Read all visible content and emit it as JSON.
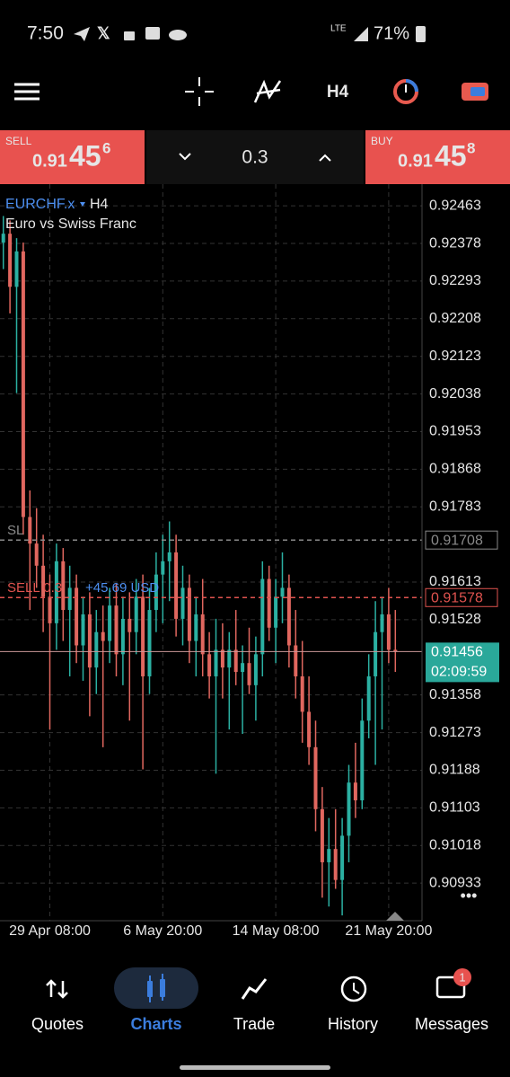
{
  "status_bar": {
    "time": "7:50",
    "network": "LTE",
    "battery": "71%"
  },
  "toolbar": {
    "timeframe": "H4"
  },
  "trade_panel": {
    "sell": {
      "label": "SELL",
      "price_prefix": "0.91",
      "price_main": "45",
      "price_suffix": "6"
    },
    "volume": "0.3",
    "buy": {
      "label": "BUY",
      "price_prefix": "0.91",
      "price_main": "45",
      "price_suffix": "8"
    }
  },
  "chart_data": {
    "type": "candlestick",
    "symbol": "EURCHF.x",
    "timeframe": "H4",
    "description": "Euro vs Swiss Franc",
    "up_color": "#2bb0a2",
    "down_color": "#e0675f",
    "grid": true,
    "categories": [
      null,
      null,
      null,
      null,
      null,
      null,
      null,
      "29 Apr 08:00",
      null,
      null,
      null,
      null,
      null,
      null,
      null,
      null,
      null,
      null,
      null,
      null,
      null,
      null,
      null,
      null,
      "6 May 20:00",
      null,
      null,
      null,
      null,
      null,
      null,
      null,
      null,
      null,
      null,
      null,
      null,
      null,
      null,
      null,
      null,
      "14 May 08:00",
      null,
      null,
      null,
      null,
      null,
      null,
      null,
      null,
      null,
      null,
      null,
      null,
      null,
      null,
      null,
      null,
      "21 May 20:00",
      null
    ],
    "open": [
      0.9238,
      0.924,
      0.9228,
      0.9236,
      0.9176,
      0.917,
      0.9165,
      0.9158,
      0.9152,
      0.9166,
      0.9155,
      0.916,
      0.9147,
      0.9154,
      0.9142,
      0.915,
      0.9148,
      0.9156,
      0.9145,
      0.9153,
      0.915,
      0.9158,
      0.914,
      0.9155,
      0.9163,
      0.9166,
      0.9168,
      0.9153,
      0.916,
      0.9148,
      0.9154,
      0.9145,
      0.914,
      0.9146,
      0.9142,
      0.9146,
      0.9141,
      0.9143,
      0.9138,
      0.9145,
      0.9162,
      0.9151,
      0.9158,
      0.916,
      0.9147,
      0.914,
      0.9132,
      0.9124,
      0.911,
      0.9098,
      0.9101,
      0.9094,
      0.9104,
      0.9116,
      0.9112,
      0.913,
      0.914,
      0.915,
      0.9154,
      0.9146
    ],
    "high": [
      0.9244,
      0.9243,
      0.9239,
      0.9238,
      0.9182,
      0.9178,
      0.9172,
      0.9163,
      0.917,
      0.9169,
      0.9165,
      0.9163,
      0.9158,
      0.9159,
      0.9155,
      0.9156,
      0.916,
      0.9161,
      0.9158,
      0.9159,
      0.9162,
      0.9163,
      0.916,
      0.9168,
      0.9172,
      0.9175,
      0.9172,
      0.9165,
      0.9163,
      0.9158,
      0.9162,
      0.915,
      0.9153,
      0.9152,
      0.915,
      0.9155,
      0.9147,
      0.9151,
      0.9149,
      0.9166,
      0.9165,
      0.9162,
      0.9168,
      0.9163,
      0.9155,
      0.9148,
      0.914,
      0.913,
      0.9115,
      0.9108,
      0.911,
      0.9108,
      0.912,
      0.9125,
      0.9135,
      0.9145,
      0.9157,
      0.9158,
      0.916,
      0.9155
    ],
    "low": [
      0.9232,
      0.9222,
      0.9204,
      0.9172,
      0.9155,
      0.916,
      0.915,
      0.9128,
      0.9146,
      0.9148,
      0.914,
      0.9143,
      0.9139,
      0.9131,
      0.9136,
      0.9124,
      0.9143,
      0.914,
      0.9138,
      0.913,
      0.9145,
      0.9119,
      0.9136,
      0.915,
      0.9152,
      0.9157,
      0.9149,
      0.9147,
      0.9143,
      0.914,
      0.914,
      0.9135,
      0.9118,
      0.9135,
      0.9128,
      0.9138,
      0.9127,
      0.9136,
      0.913,
      0.914,
      0.9148,
      0.9143,
      0.9152,
      0.9142,
      0.9135,
      0.9125,
      0.912,
      0.9105,
      0.909,
      0.9088,
      0.9092,
      0.9086,
      0.9098,
      0.9108,
      0.911,
      0.9126,
      0.912,
      0.9128,
      0.9143,
      0.9141
    ],
    "close": [
      0.924,
      0.9228,
      0.9236,
      0.9176,
      0.917,
      0.9165,
      0.9158,
      0.9152,
      0.9166,
      0.9155,
      0.916,
      0.9147,
      0.9154,
      0.9142,
      0.915,
      0.9148,
      0.9156,
      0.9145,
      0.9153,
      0.915,
      0.9158,
      0.914,
      0.9155,
      0.9163,
      0.9166,
      0.9168,
      0.9153,
      0.916,
      0.9148,
      0.9154,
      0.9145,
      0.914,
      0.9146,
      0.9142,
      0.9146,
      0.9141,
      0.9143,
      0.9138,
      0.9145,
      0.9162,
      0.9151,
      0.9158,
      0.916,
      0.9147,
      0.914,
      0.9132,
      0.9124,
      0.911,
      0.9098,
      0.9101,
      0.9094,
      0.9104,
      0.9116,
      0.9112,
      0.913,
      0.914,
      0.915,
      0.9154,
      0.9146,
      0.91456
    ],
    "ylim": [
      0.90848,
      0.92512
    ],
    "yticks": [
      0.92463,
      0.92378,
      0.92293,
      0.92208,
      0.92123,
      0.92038,
      0.91953,
      0.91868,
      0.91783,
      0.91613,
      0.91528,
      0.91358,
      0.91273,
      0.91188,
      0.91103,
      0.91018,
      0.90933
    ],
    "levels": [
      {
        "label": "SL",
        "value": 0.91708,
        "color": "#8a8a8a",
        "style": "dashed"
      },
      {
        "label": "SELL 0.3",
        "profit": "+45.69 USD",
        "value": 0.91578,
        "color": "#e0534f",
        "style": "dashed"
      },
      {
        "value": 0.91456,
        "countdown": "02:09:59",
        "color": "#2aa89a",
        "style": "solid"
      }
    ]
  },
  "nav": {
    "items": [
      {
        "label": "Quotes"
      },
      {
        "label": "Charts"
      },
      {
        "label": "Trade"
      },
      {
        "label": "History"
      },
      {
        "label": "Messages",
        "badge": 1
      }
    ]
  }
}
